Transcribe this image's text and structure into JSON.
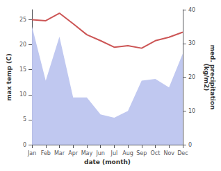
{
  "chart_data": {
    "type": "line",
    "xlabel": "date (month)",
    "ylabel": "max temp (C)",
    "y2label": "med. precipitation\n(kg/m2)",
    "categories": [
      "Jan",
      "Feb",
      "Mar",
      "Apr",
      "May",
      "Jun",
      "Jul",
      "Aug",
      "Sep",
      "Oct",
      "Nov",
      "Dec"
    ],
    "series": [
      {
        "type": "area",
        "axis": "y2",
        "color": "#c0c8f0",
        "values": [
          35.0,
          19.0,
          32.0,
          14.0,
          14.0,
          9.0,
          8.0,
          10.0,
          19.0,
          19.5,
          17.0,
          27.0
        ]
      },
      {
        "type": "line",
        "color": "#cc5555",
        "values": [
          25.0,
          24.8,
          26.3,
          24.2,
          22.0,
          20.8,
          19.5,
          19.8,
          19.3,
          20.8,
          21.5,
          22.5
        ]
      }
    ],
    "ylim": [
      0,
      27
    ],
    "yticks": [
      0,
      5,
      10,
      15,
      20,
      25
    ],
    "y2lim": [
      0,
      40
    ],
    "y2ticks": [
      0,
      10,
      20,
      30,
      40
    ],
    "grid": false
  }
}
